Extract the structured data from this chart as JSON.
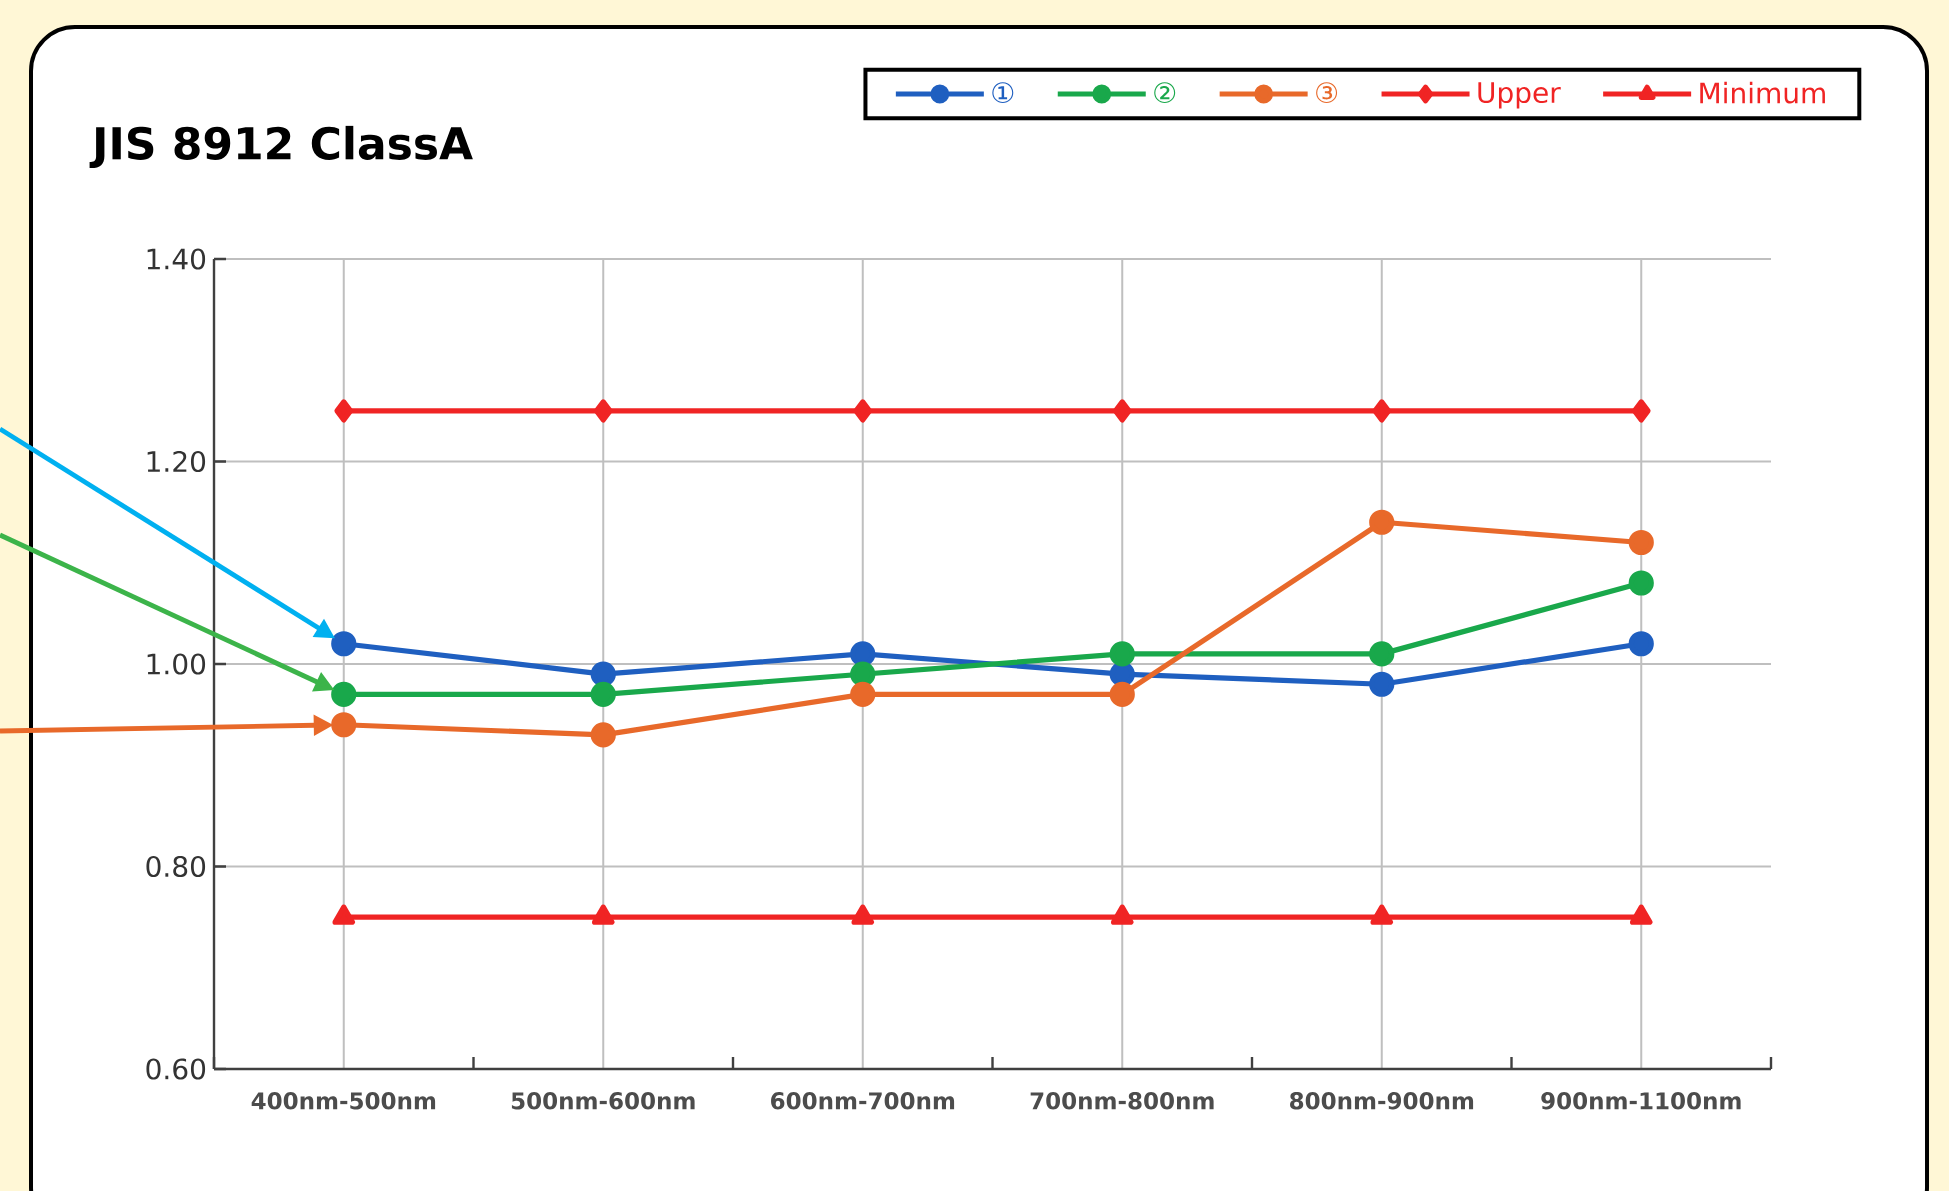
{
  "chart_data": {
    "type": "line",
    "title": "JIS 8912 ClassA",
    "categories": [
      "400nm-500nm",
      "500nm-600nm",
      "600nm-700nm",
      "700nm-800nm",
      "800nm-900nm",
      "900nm-1100nm"
    ],
    "ylim": [
      0.6,
      1.4
    ],
    "yticks": [
      {
        "value": 0.6,
        "label": "0.60"
      },
      {
        "value": 0.8,
        "label": "0.80"
      },
      {
        "value": 1.0,
        "label": "1.00"
      },
      {
        "value": 1.2,
        "label": "1.20"
      },
      {
        "value": 1.4,
        "label": "1.40"
      }
    ],
    "grid": true,
    "legend": "top right",
    "line_style": "solid",
    "series": [
      {
        "name": "①",
        "color": "#1f5fc0",
        "marker": "circle",
        "values": [
          1.02,
          0.99,
          1.01,
          0.99,
          0.98,
          1.02
        ]
      },
      {
        "name": "②",
        "color": "#19a84b",
        "marker": "circle",
        "values": [
          0.97,
          0.97,
          0.99,
          1.01,
          1.01,
          1.08
        ]
      },
      {
        "name": "③",
        "color": "#e8692a",
        "marker": "circle",
        "values": [
          0.94,
          0.93,
          0.97,
          0.97,
          1.14,
          1.12
        ]
      },
      {
        "name": "Upper",
        "color": "#f02424",
        "marker": "diamond",
        "values": [
          1.25,
          1.25,
          1.25,
          1.25,
          1.25,
          1.25
        ]
      },
      {
        "name": "Minimum",
        "color": "#f02424",
        "marker": "triangle",
        "values": [
          0.75,
          0.75,
          0.75,
          0.75,
          0.75,
          0.75
        ]
      }
    ]
  }
}
